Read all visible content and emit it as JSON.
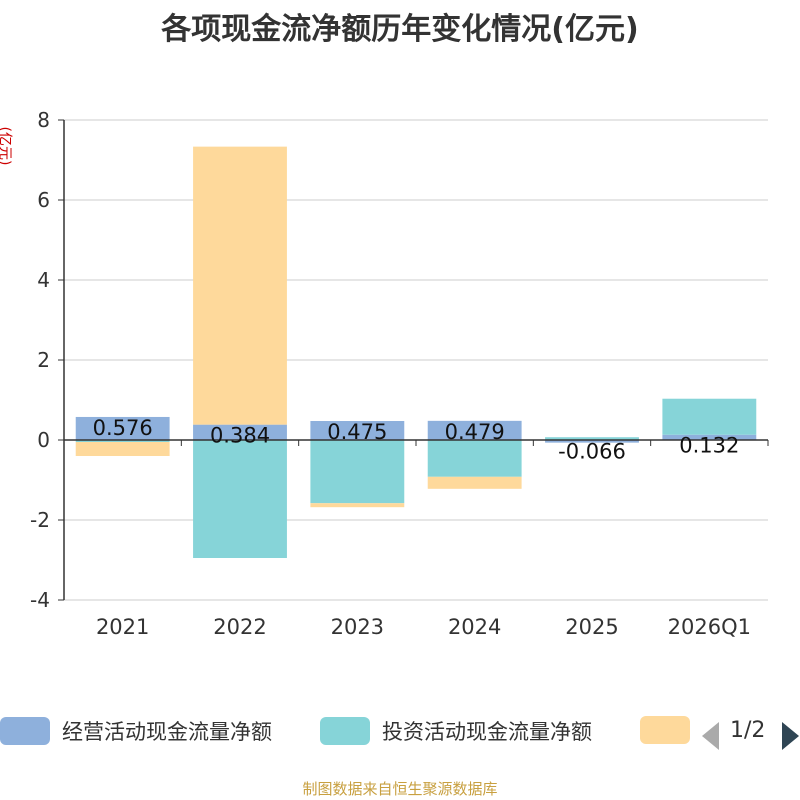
{
  "title": "各项现金流净额历年变化情况(亿元)",
  "unit_label": "(亿元)",
  "source": "制图数据来自恒生聚源数据库",
  "pager": {
    "text": "1/2"
  },
  "colors": {
    "operating": "#8eb0dc",
    "investing": "#86d4d8",
    "financing": "#fed99b",
    "axis": "#333333",
    "grid": "#cccccc"
  },
  "chart_data": {
    "type": "bar",
    "stacked": true,
    "categories": [
      "2021",
      "2022",
      "2023",
      "2024",
      "2025",
      "2026Q1"
    ],
    "ylim": [
      -4,
      8
    ],
    "yticks": [
      -4,
      -2,
      0,
      2,
      4,
      6,
      8
    ],
    "series": [
      {
        "name": "经营活动现金流量净额",
        "values": [
          0.576,
          0.384,
          0.475,
          0.479,
          -0.066,
          0.132
        ],
        "labels": [
          "0.576",
          "0.384",
          "0.475",
          "0.479",
          "-0.066",
          "0.132"
        ]
      },
      {
        "name": "投资活动现金流量净额",
        "values": [
          -0.05,
          -2.95,
          -1.58,
          -0.92,
          0.07,
          0.9
        ]
      },
      {
        "name": "",
        "values": [
          -0.35,
          6.95,
          -0.1,
          -0.3,
          0.0,
          0.0
        ]
      }
    ],
    "legend_position": "bottom"
  }
}
